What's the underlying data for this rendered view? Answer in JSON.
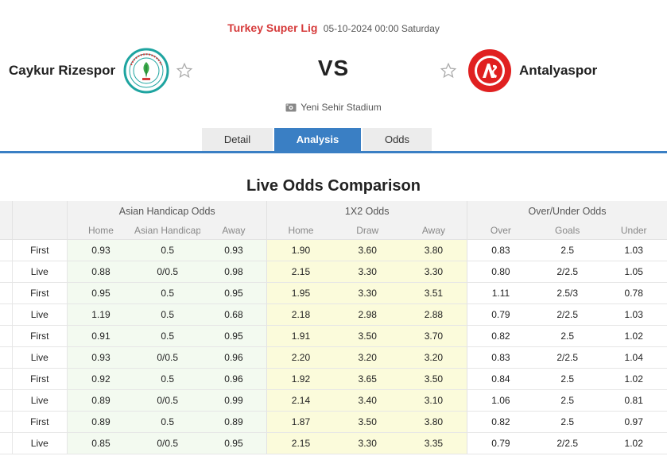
{
  "match": {
    "league": "Turkey Super Lig",
    "datetime": "05-10-2024 00:00 Saturday",
    "home_team": "Caykur Rizespor",
    "away_team": "Antalyaspor",
    "vs": "VS",
    "stadium": "Yeni Sehir Stadium"
  },
  "tabs": [
    {
      "label": "Detail",
      "active": false
    },
    {
      "label": "Analysis",
      "active": true
    },
    {
      "label": "Odds",
      "active": false
    }
  ],
  "section_title": "Live Odds Comparison",
  "table": {
    "groups": [
      "Asian Handicap Odds",
      "1X2 Odds",
      "Over/Under Odds"
    ],
    "subheaders": [
      "Home",
      "Asian Handicap",
      "Away",
      "Home",
      "Draw",
      "Away",
      "Over",
      "Goals",
      "Under"
    ],
    "rows": [
      {
        "type": "First",
        "ah": [
          "0.93",
          "0.5",
          "0.93"
        ],
        "x12": [
          "1.90",
          "3.60",
          "3.80"
        ],
        "ou": [
          "0.83",
          "2.5",
          "1.03"
        ]
      },
      {
        "type": "Live",
        "ah": [
          "0.88",
          "0/0.5",
          "0.98"
        ],
        "x12": [
          "2.15",
          "3.30",
          "3.30"
        ],
        "ou": [
          "0.80",
          "2/2.5",
          "1.05"
        ]
      },
      {
        "type": "First",
        "ah": [
          "0.95",
          "0.5",
          "0.95"
        ],
        "x12": [
          "1.95",
          "3.30",
          "3.51"
        ],
        "ou": [
          "1.11",
          "2.5/3",
          "0.78"
        ]
      },
      {
        "type": "Live",
        "ah": [
          "1.19",
          "0.5",
          "0.68"
        ],
        "x12": [
          "2.18",
          "2.98",
          "2.88"
        ],
        "ou": [
          "0.79",
          "2/2.5",
          "1.03"
        ]
      },
      {
        "type": "First",
        "ah": [
          "0.91",
          "0.5",
          "0.95"
        ],
        "x12": [
          "1.91",
          "3.50",
          "3.70"
        ],
        "ou": [
          "0.82",
          "2.5",
          "1.02"
        ]
      },
      {
        "type": "Live",
        "ah": [
          "0.93",
          "0/0.5",
          "0.96"
        ],
        "x12": [
          "2.20",
          "3.20",
          "3.20"
        ],
        "ou": [
          "0.83",
          "2/2.5",
          "1.04"
        ]
      },
      {
        "type": "First",
        "ah": [
          "0.92",
          "0.5",
          "0.96"
        ],
        "x12": [
          "1.92",
          "3.65",
          "3.50"
        ],
        "ou": [
          "0.84",
          "2.5",
          "1.02"
        ]
      },
      {
        "type": "Live",
        "ah": [
          "0.89",
          "0/0.5",
          "0.99"
        ],
        "x12": [
          "2.14",
          "3.40",
          "3.10"
        ],
        "ou": [
          "1.06",
          "2.5",
          "0.81"
        ]
      },
      {
        "type": "First",
        "ah": [
          "0.89",
          "0.5",
          "0.89"
        ],
        "x12": [
          "1.87",
          "3.50",
          "3.80"
        ],
        "ou": [
          "0.82",
          "2.5",
          "0.97"
        ]
      },
      {
        "type": "Live",
        "ah": [
          "0.85",
          "0/0.5",
          "0.95"
        ],
        "x12": [
          "2.15",
          "3.30",
          "3.35"
        ],
        "ou": [
          "0.79",
          "2/2.5",
          "1.02"
        ]
      }
    ]
  },
  "colors": {
    "league_red": "#d63b3b",
    "tab_active": "#3a7fc4",
    "ah_bg": "#f3faf0",
    "x12_bg": "#fbfbdb"
  },
  "icons": {
    "home_logo": "rizespor-crest-icon",
    "away_logo": "antalyaspor-crest-icon",
    "favorite": "star-outline-icon",
    "stadium": "stadium-icon"
  }
}
